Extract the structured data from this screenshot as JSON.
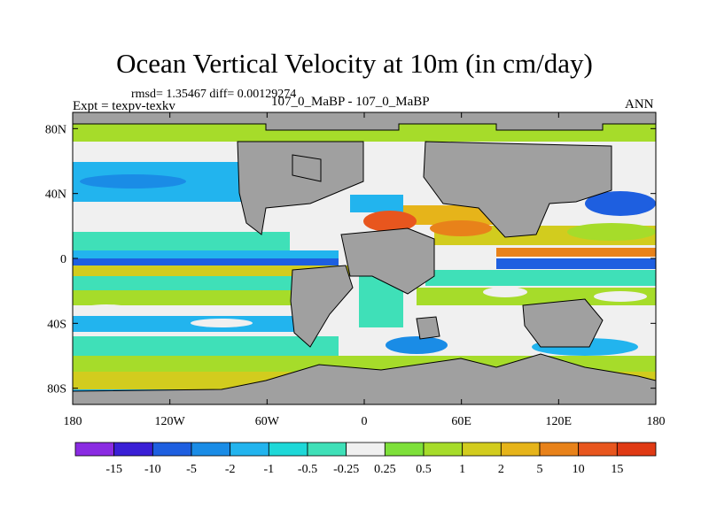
{
  "chart_data": {
    "type": "heatmap",
    "title": "Ocean Vertical Velocity at 10m (in cm/day)",
    "stats_text": "rmsd= 1.35467 diff= 0.00129274",
    "left_label": "Expt = texpv-texkv",
    "center_label": "107_0_MaBP - 107_0_MaBP",
    "right_label": "ANN",
    "xlim": [
      -180,
      180
    ],
    "ylim": [
      -90,
      90
    ],
    "x_ticks": [
      {
        "value": -180,
        "label": "180"
      },
      {
        "value": -120,
        "label": "120W"
      },
      {
        "value": -60,
        "label": "60W"
      },
      {
        "value": 0,
        "label": "0"
      },
      {
        "value": 60,
        "label": "60E"
      },
      {
        "value": 120,
        "label": "120E"
      },
      {
        "value": 180,
        "label": "180"
      }
    ],
    "y_ticks": [
      {
        "value": 80,
        "label": "80N"
      },
      {
        "value": 40,
        "label": "40N"
      },
      {
        "value": 0,
        "label": "0"
      },
      {
        "value": -40,
        "label": "40S"
      },
      {
        "value": -80,
        "label": "80S"
      }
    ],
    "colorbar": {
      "levels": [
        "-15",
        "-10",
        "-5",
        "-2",
        "-1",
        "-0.5",
        "-0.25",
        "0.25",
        "0.5",
        "1",
        "2",
        "5",
        "10",
        "15"
      ],
      "colors": [
        "#8a2be2",
        "#3a1fd6",
        "#1e5fe0",
        "#1a8ce6",
        "#22b4ee",
        "#1ed8d8",
        "#3fe0b8",
        "#f0f0f0",
        "#7ee03a",
        "#a6dc2a",
        "#d2cc1e",
        "#e6b41a",
        "#e8821a",
        "#e8561e",
        "#e03a14"
      ]
    },
    "land_color": "#a0a0a0",
    "ocean_background_color": "#f0f0f0"
  }
}
